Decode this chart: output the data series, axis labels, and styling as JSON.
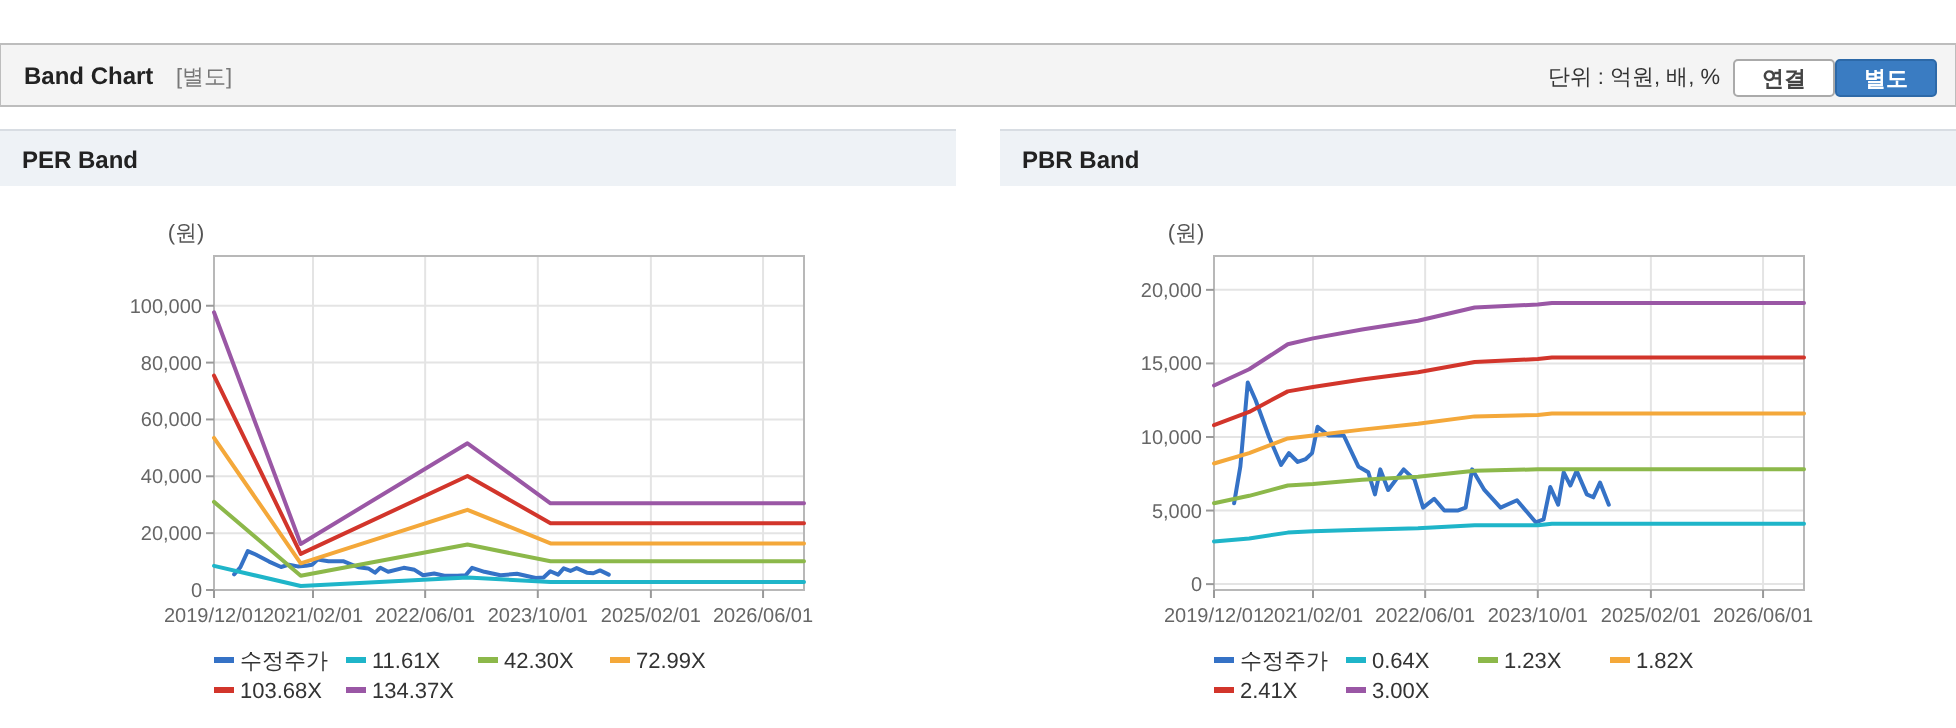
{
  "chart_data": [
    {
      "type": "other",
      "title": "Band Chart",
      "annotations": [
        "[별도]",
        "단위 : 억원, 배, %",
        "연결",
        "별도"
      ]
    },
    {
      "type": "line",
      "title": "PER Band",
      "ylabel": "(원)",
      "grid": true,
      "legend": "bottom",
      "marker": "none",
      "line_style": "solid",
      "xlim": [
        "2019-12-01",
        "2026-11-25"
      ],
      "xticks": [
        {
          "value": "2019-12-01",
          "label": "2019/12/01"
        },
        {
          "value": "2021-02-01",
          "label": "2021/02/01"
        },
        {
          "value": "2022-06-01",
          "label": "2022/06/01"
        },
        {
          "value": "2023-10-01",
          "label": "2023/10/01"
        },
        {
          "value": "2025-02-01",
          "label": "2025/02/01"
        },
        {
          "value": "2026-06-01",
          "label": "2026/06/01"
        }
      ],
      "ylim": [
        0,
        117500
      ],
      "yticks": [
        0,
        {
          "value": 20000,
          "label": "20,000"
        },
        {
          "value": 40000,
          "label": "40,000"
        },
        {
          "value": 60000,
          "label": "60,000"
        },
        {
          "value": 80000,
          "label": "80,000"
        },
        {
          "value": 100000,
          "label": "100,000"
        }
      ],
      "x": [
        "2019-12-01",
        "2020-12-10",
        "2022-12-01",
        "2023-11-25",
        "2026-11-25"
      ],
      "series": [
        {
          "name": "수정주가",
          "color": "#3572c6",
          "x": [
            "2020-02-26",
            "2020-03-24",
            "2020-04-25",
            "2020-05-29",
            "2020-07-26",
            "2020-09-16",
            "2020-10-20",
            "2020-11-27",
            "2021-01-01",
            "2021-01-28",
            "2021-02-21",
            "2021-04-09",
            "2021-06-14",
            "2021-08-16",
            "2021-09-28",
            "2021-10-27",
            "2021-11-19",
            "2021-12-23",
            "2022-02-28",
            "2022-04-16",
            "2022-05-23",
            "2022-07-10",
            "2022-08-23",
            "2022-10-19",
            "2022-11-23",
            "2022-12-21",
            "2023-02-12",
            "2023-04-23",
            "2023-07-03",
            "2023-09-22",
            "2023-10-26",
            "2023-11-24",
            "2023-12-28",
            "2024-01-21",
            "2024-02-19",
            "2024-03-17",
            "2024-04-30",
            "2024-05-28",
            "2024-06-26",
            "2024-08-03"
          ],
          "values": [
            5500,
            8000,
            13700,
            12500,
            10000,
            8100,
            8900,
            8300,
            8500,
            8900,
            10700,
            10100,
            10100,
            8000,
            7600,
            6100,
            7800,
            6400,
            7800,
            7100,
            5200,
            5800,
            5000,
            5000,
            5200,
            7800,
            6400,
            5200,
            5700,
            4200,
            4400,
            6600,
            5400,
            7600,
            6700,
            7700,
            6100,
            5900,
            6900,
            5400
          ]
        },
        {
          "name": "11.61X",
          "color": "#1fb5c9",
          "values": [
            8500,
            1400,
            4400,
            2800,
            2800
          ]
        },
        {
          "name": "42.30X",
          "color": "#8cb84a",
          "values": [
            31000,
            5000,
            16000,
            10100,
            10100
          ]
        },
        {
          "name": "72.99X",
          "color": "#f4a83a",
          "values": [
            53500,
            9400,
            28200,
            16400,
            16400
          ]
        },
        {
          "name": "103.68X",
          "color": "#d2352b",
          "values": [
            75400,
            12700,
            40100,
            23500,
            23500
          ]
        },
        {
          "name": "134.37X",
          "color": "#9a57a5",
          "values": [
            97700,
            16200,
            51600,
            30500,
            30500
          ]
        }
      ]
    },
    {
      "type": "line",
      "title": "PBR Band",
      "ylabel": "(원)",
      "grid": true,
      "legend": "bottom",
      "marker": "none",
      "line_style": "solid",
      "xlim": [
        "2019-12-01",
        "2026-11-25"
      ],
      "xticks": [
        {
          "value": "2019-12-01",
          "label": "2019/12/01"
        },
        {
          "value": "2021-02-01",
          "label": "2021/02/01"
        },
        {
          "value": "2022-06-01",
          "label": "2022/06/01"
        },
        {
          "value": "2023-10-01",
          "label": "2023/10/01"
        },
        {
          "value": "2025-02-01",
          "label": "2025/02/01"
        },
        {
          "value": "2026-06-01",
          "label": "2026/06/01"
        }
      ],
      "ylim": [
        -400,
        22300
      ],
      "yticks": [
        0,
        {
          "value": 5000,
          "label": "5,000"
        },
        {
          "value": 10000,
          "label": "10,000"
        },
        {
          "value": 15000,
          "label": "15,000"
        },
        {
          "value": 20000,
          "label": "20,000"
        }
      ],
      "x": [
        "2019-12-01",
        "2020-05-01",
        "2020-10-15",
        "2021-02-01",
        "2021-09-01",
        "2022-05-01",
        "2023-01-01",
        "2023-10-01",
        "2023-12-01",
        "2026-11-25"
      ],
      "series": [
        {
          "name": "수정주가",
          "color": "#3572c6",
          "x": [
            "2020-02-26",
            "2020-03-24",
            "2020-04-25",
            "2020-05-29",
            "2020-07-26",
            "2020-09-16",
            "2020-10-20",
            "2020-11-27",
            "2021-01-01",
            "2021-01-28",
            "2021-02-21",
            "2021-04-09",
            "2021-06-14",
            "2021-08-16",
            "2021-09-28",
            "2021-10-27",
            "2021-11-19",
            "2021-12-23",
            "2022-02-28",
            "2022-04-16",
            "2022-05-23",
            "2022-07-10",
            "2022-08-23",
            "2022-10-19",
            "2022-11-23",
            "2022-12-21",
            "2023-02-12",
            "2023-04-23",
            "2023-07-03",
            "2023-09-22",
            "2023-10-26",
            "2023-11-24",
            "2023-12-28",
            "2024-01-21",
            "2024-02-19",
            "2024-03-17",
            "2024-04-30",
            "2024-05-28",
            "2024-06-26",
            "2024-08-03"
          ],
          "values": [
            5500,
            8000,
            13700,
            12500,
            10000,
            8100,
            8900,
            8300,
            8500,
            8900,
            10700,
            10100,
            10100,
            8000,
            7600,
            6100,
            7800,
            6400,
            7800,
            7100,
            5200,
            5800,
            5000,
            5000,
            5200,
            7800,
            6400,
            5200,
            5700,
            4200,
            4400,
            6600,
            5400,
            7600,
            6700,
            7700,
            6100,
            5900,
            6900,
            5400
          ]
        },
        {
          "name": "0.64X",
          "color": "#1fb5c9",
          "values": [
            2900,
            3100,
            3500,
            3600,
            3700,
            3800,
            4000,
            4000,
            4100,
            4100
          ]
        },
        {
          "name": "1.23X",
          "color": "#8cb84a",
          "values": [
            5500,
            6000,
            6700,
            6800,
            7100,
            7300,
            7700,
            7800,
            7800,
            7800
          ]
        },
        {
          "name": "1.82X",
          "color": "#f4a83a",
          "values": [
            8200,
            8900,
            9900,
            10100,
            10500,
            10900,
            11400,
            11500,
            11600,
            11600
          ]
        },
        {
          "name": "2.41X",
          "color": "#d2352b",
          "values": [
            10800,
            11700,
            13100,
            13400,
            13900,
            14400,
            15100,
            15300,
            15400,
            15400
          ]
        },
        {
          "name": "3.00X",
          "color": "#9a57a5",
          "values": [
            13500,
            14600,
            16300,
            16700,
            17300,
            17900,
            18800,
            19000,
            19100,
            19100
          ]
        }
      ]
    }
  ]
}
